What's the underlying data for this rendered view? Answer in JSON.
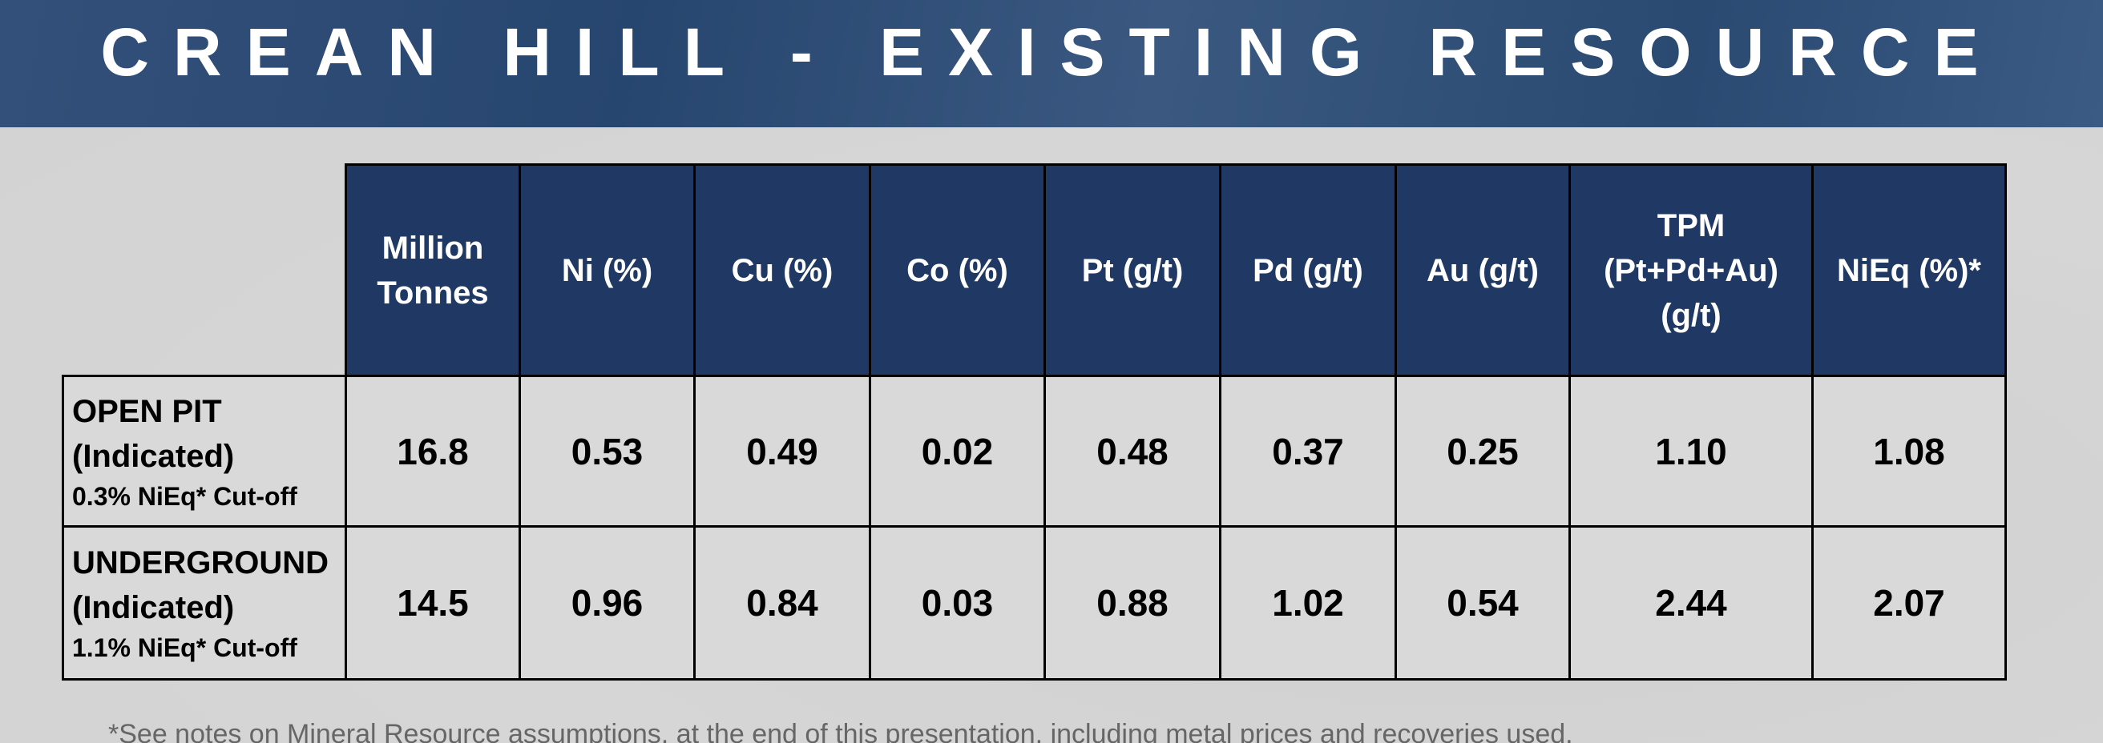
{
  "header": {
    "title": "CREAN HILL - EXISTING RESOURCE"
  },
  "table": {
    "columns": [
      [
        "Million",
        "Tonnes"
      ],
      [
        "Ni (%)"
      ],
      [
        "Cu (%)"
      ],
      [
        "Co (%)"
      ],
      [
        "Pt (g/t)"
      ],
      [
        "Pd (g/t)"
      ],
      [
        "Au (g/t)"
      ],
      [
        "TPM",
        "(Pt+Pd+Au)",
        "(g/t)"
      ],
      [
        "NiEq (%)*"
      ]
    ],
    "rows": [
      {
        "label": [
          "OPEN PIT",
          "(Indicated)"
        ],
        "cutoff": "0.3% NiEq* Cut-off",
        "cells": [
          "16.8",
          "0.53",
          "0.49",
          "0.02",
          "0.48",
          "0.37",
          "0.25",
          "1.10",
          "1.08"
        ]
      },
      {
        "label": [
          "UNDERGROUND",
          "(Indicated)"
        ],
        "cutoff": "1.1% NiEq* Cut-off",
        "cells": [
          "14.5",
          "0.96",
          "0.84",
          "0.03",
          "0.88",
          "1.02",
          "0.54",
          "2.44",
          "2.07"
        ]
      }
    ]
  },
  "footnote": "*See notes on Mineral Resource assumptions, at the end of this presentation, including metal prices and recoveries used."
}
